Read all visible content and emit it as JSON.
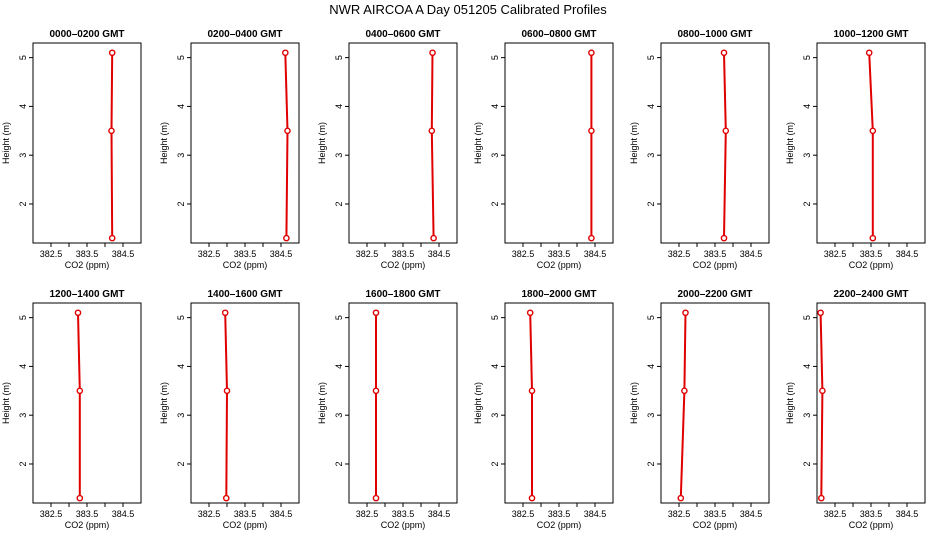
{
  "title": "NWR AIRCOA A  Day 051205  Calibrated Profiles",
  "chart_data": {
    "type": "line",
    "xlabel": "CO2 (ppm)",
    "ylabel": "Height (m)",
    "xlim": [
      382.0,
      385.0
    ],
    "ylim": [
      1.2,
      5.3
    ],
    "xticks": [
      382.5,
      383.0,
      383.5,
      384.0,
      384.5
    ],
    "xtick_labels": [
      "382.5",
      "",
      "383.5",
      "",
      "384.5"
    ],
    "yticks": [
      2,
      3,
      4,
      5
    ],
    "color": "#e00000",
    "panels": [
      {
        "title": "0000–0200 GMT",
        "points": [
          {
            "x": 384.2,
            "y": 5.1
          },
          {
            "x": 384.18,
            "y": 3.5
          },
          {
            "x": 384.2,
            "y": 1.3
          }
        ]
      },
      {
        "title": "0200–0400 GMT",
        "points": [
          {
            "x": 384.62,
            "y": 5.1
          },
          {
            "x": 384.68,
            "y": 3.5
          },
          {
            "x": 384.65,
            "y": 1.3
          }
        ]
      },
      {
        "title": "0400–0600 GMT",
        "points": [
          {
            "x": 384.32,
            "y": 5.1
          },
          {
            "x": 384.3,
            "y": 3.5
          },
          {
            "x": 384.35,
            "y": 1.3
          }
        ]
      },
      {
        "title": "0600–0800 GMT",
        "points": [
          {
            "x": 384.4,
            "y": 5.1
          },
          {
            "x": 384.4,
            "y": 3.5
          },
          {
            "x": 384.4,
            "y": 1.3
          }
        ]
      },
      {
        "title": "0800–1000 GMT",
        "points": [
          {
            "x": 383.75,
            "y": 5.1
          },
          {
            "x": 383.8,
            "y": 3.5
          },
          {
            "x": 383.75,
            "y": 1.3
          }
        ]
      },
      {
        "title": "1000–1200 GMT",
        "points": [
          {
            "x": 383.45,
            "y": 5.1
          },
          {
            "x": 383.55,
            "y": 3.5
          },
          {
            "x": 383.55,
            "y": 1.3
          }
        ]
      },
      {
        "title": "1200–1400 GMT",
        "points": [
          {
            "x": 383.25,
            "y": 5.1
          },
          {
            "x": 383.3,
            "y": 3.5
          },
          {
            "x": 383.3,
            "y": 1.3
          }
        ]
      },
      {
        "title": "1400–1600 GMT",
        "points": [
          {
            "x": 382.95,
            "y": 5.1
          },
          {
            "x": 383.0,
            "y": 3.5
          },
          {
            "x": 382.98,
            "y": 1.3
          }
        ]
      },
      {
        "title": "1600–1800 GMT",
        "points": [
          {
            "x": 382.75,
            "y": 5.1
          },
          {
            "x": 382.75,
            "y": 3.5
          },
          {
            "x": 382.75,
            "y": 1.3
          }
        ]
      },
      {
        "title": "1800–2000 GMT",
        "points": [
          {
            "x": 382.7,
            "y": 5.1
          },
          {
            "x": 382.75,
            "y": 3.5
          },
          {
            "x": 382.75,
            "y": 1.3
          }
        ]
      },
      {
        "title": "2000–2200 GMT",
        "points": [
          {
            "x": 382.68,
            "y": 5.1
          },
          {
            "x": 382.65,
            "y": 3.5
          },
          {
            "x": 382.55,
            "y": 1.3
          }
        ]
      },
      {
        "title": "2200–2400 GMT",
        "points": [
          {
            "x": 382.1,
            "y": 5.1
          },
          {
            "x": 382.15,
            "y": 3.5
          },
          {
            "x": 382.12,
            "y": 1.3
          }
        ]
      }
    ]
  }
}
